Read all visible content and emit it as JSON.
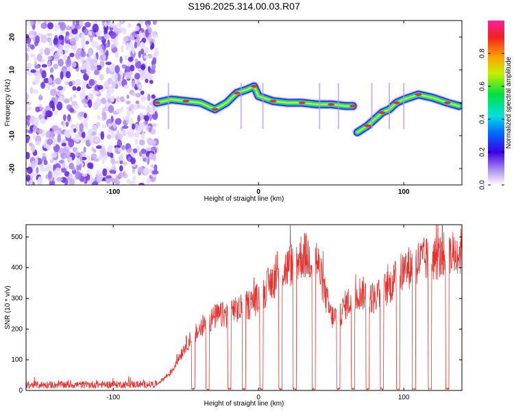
{
  "title": "S196.2025.314.00.03.R07",
  "chart_data": [
    {
      "type": "heatmap",
      "name": "spectrogram",
      "xlabel": "Height of straight line (km)",
      "ylabel": "Frequency (Hz)",
      "xlim": [
        -160,
        140
      ],
      "ylim": [
        -25,
        25
      ],
      "xticks": [
        -100,
        0,
        100
      ],
      "yticks": [
        -20,
        -10,
        0,
        10,
        20
      ],
      "colorbar": {
        "label": "Normalized spectral amplitude",
        "range": [
          0,
          1
        ],
        "ticks": [
          0.0,
          0.2,
          0.4,
          0.6,
          0.8
        ]
      },
      "noise_region": {
        "x_from": -160,
        "x_to": -70
      },
      "signal_track": [
        {
          "x": -70,
          "y": 0
        },
        {
          "x": -60,
          "y": 1
        },
        {
          "x": -50,
          "y": 0.5
        },
        {
          "x": -40,
          "y": 0
        },
        {
          "x": -30,
          "y": -2
        },
        {
          "x": -22,
          "y": 0
        },
        {
          "x": -15,
          "y": 3
        },
        {
          "x": -8,
          "y": 4
        },
        {
          "x": -3,
          "y": 5
        },
        {
          "x": 0,
          "y": 2
        },
        {
          "x": 10,
          "y": 0.5
        },
        {
          "x": 20,
          "y": 0
        },
        {
          "x": 30,
          "y": 0
        },
        {
          "x": 40,
          "y": -0.5
        },
        {
          "x": 50,
          "y": -0.5
        },
        {
          "x": 60,
          "y": -1
        },
        {
          "x": 65,
          "y": -1
        },
        {
          "x": 68,
          "y": -9
        },
        {
          "x": 75,
          "y": -7
        },
        {
          "x": 80,
          "y": -5
        },
        {
          "x": 85,
          "y": -3
        },
        {
          "x": 90,
          "y": -2
        },
        {
          "x": 95,
          "y": 0
        },
        {
          "x": 100,
          "y": 1
        },
        {
          "x": 110,
          "y": 2.5
        },
        {
          "x": 120,
          "y": 1.5
        },
        {
          "x": 130,
          "y": 0
        },
        {
          "x": 138,
          "y": -1
        }
      ]
    },
    {
      "type": "line",
      "name": "snr",
      "xlabel": "Height of straight line (km)",
      "ylabel": "SNR (10 * v/v)",
      "xlim": [
        -160,
        140
      ],
      "ylim": [
        0,
        540
      ],
      "xticks": [
        -100,
        0,
        100
      ],
      "yticks": [
        0,
        100,
        200,
        300,
        400,
        500
      ],
      "color": "#e8302c",
      "envelope": [
        {
          "x": -160,
          "y": 18
        },
        {
          "x": -70,
          "y": 20
        },
        {
          "x": -60,
          "y": 60
        },
        {
          "x": -50,
          "y": 150
        },
        {
          "x": -40,
          "y": 200
        },
        {
          "x": -30,
          "y": 240
        },
        {
          "x": -20,
          "y": 250
        },
        {
          "x": -10,
          "y": 270
        },
        {
          "x": 0,
          "y": 300
        },
        {
          "x": 10,
          "y": 360
        },
        {
          "x": 20,
          "y": 400
        },
        {
          "x": 30,
          "y": 440
        },
        {
          "x": 40,
          "y": 430
        },
        {
          "x": 45,
          "y": 330
        },
        {
          "x": 50,
          "y": 240
        },
        {
          "x": 55,
          "y": 240
        },
        {
          "x": 60,
          "y": 280
        },
        {
          "x": 70,
          "y": 320
        },
        {
          "x": 80,
          "y": 300
        },
        {
          "x": 90,
          "y": 340
        },
        {
          "x": 100,
          "y": 390
        },
        {
          "x": 110,
          "y": 420
        },
        {
          "x": 120,
          "y": 430
        },
        {
          "x": 130,
          "y": 440
        },
        {
          "x": 140,
          "y": 450
        }
      ],
      "dropouts": [
        -45,
        -35,
        -20,
        -10,
        2,
        15,
        25,
        38,
        55,
        65,
        75,
        85,
        96,
        107,
        118,
        130
      ]
    }
  ]
}
